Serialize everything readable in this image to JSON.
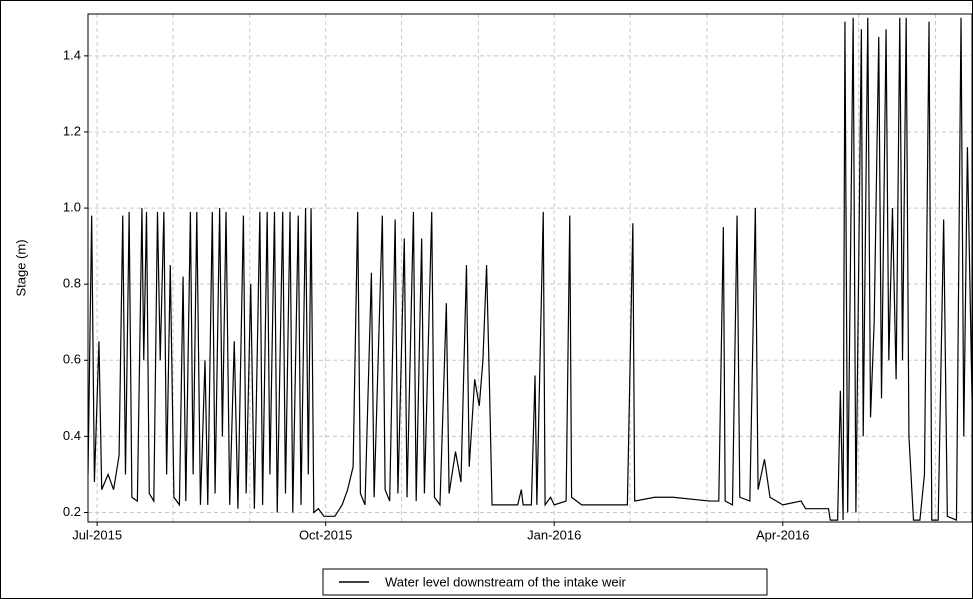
{
  "chart_data": {
    "type": "line",
    "ylabel": "Stage (m)",
    "xlim": [
      2015.49,
      2016.457
    ],
    "xticks": [
      {
        "value": 2015.5,
        "label": "Jul-2015"
      },
      {
        "value": 2015.75,
        "label": "Oct-2015"
      },
      {
        "value": 2016.0,
        "label": "Jan-2016"
      },
      {
        "value": 2016.25,
        "label": "Apr-2016"
      }
    ],
    "xgrid": [
      2015.5,
      2015.583,
      2015.667,
      2015.75,
      2015.833,
      2015.917,
      2016.0,
      2016.083,
      2016.167,
      2016.25,
      2016.333,
      2016.417
    ],
    "ylim": [
      0.175,
      1.51
    ],
    "yticks": [
      {
        "value": 0.2,
        "label": "0.2"
      },
      {
        "value": 0.4,
        "label": "0.4"
      },
      {
        "value": 0.6,
        "label": "0.6"
      },
      {
        "value": 0.8,
        "label": "0.8"
      },
      {
        "value": 1.0,
        "label": "1.0"
      },
      {
        "value": 1.2,
        "label": "1.2"
      },
      {
        "value": 1.4,
        "label": "1.4"
      }
    ],
    "grid": true,
    "legend": "bottom",
    "x": [
      2015.49,
      2015.494,
      2015.497,
      2015.502,
      2015.505,
      2015.512,
      2015.518,
      2015.524,
      2015.528,
      2015.531,
      2015.535,
      2015.538,
      2015.544,
      2015.549,
      2015.551,
      2015.554,
      2015.557,
      2015.562,
      2015.566,
      2015.569,
      2015.573,
      2015.576,
      2015.58,
      2015.584,
      2015.59,
      2015.594,
      2015.597,
      2015.602,
      2015.605,
      2015.609,
      2015.613,
      2015.618,
      2015.621,
      2015.626,
      2015.629,
      2015.634,
      2015.637,
      2015.641,
      2015.645,
      2015.65,
      2015.654,
      2015.66,
      2015.663,
      2015.668,
      2015.672,
      2015.678,
      2015.681,
      2015.686,
      2015.689,
      2015.694,
      2015.697,
      2015.703,
      2015.706,
      2015.711,
      2015.714,
      2015.72,
      2015.723,
      2015.728,
      2015.731,
      2015.734,
      2015.737,
      2015.742,
      2015.748,
      2015.76,
      2015.768,
      2015.774,
      2015.78,
      2015.785,
      2015.788,
      2015.793,
      2015.8,
      2015.803,
      2015.812,
      2015.815,
      2015.82,
      2015.826,
      2015.829,
      2015.836,
      2015.839,
      2015.846,
      2015.849,
      2015.855,
      2015.858,
      2015.866,
      2015.869,
      2015.875,
      2015.882,
      2015.885,
      2015.892,
      2015.898,
      2015.904,
      2015.907,
      2015.913,
      2015.918,
      2015.922,
      2015.926,
      2015.929,
      2015.932,
      2015.96,
      2015.964,
      2015.966,
      2015.975,
      2015.979,
      2015.981,
      2015.988,
      2015.99,
      2015.996,
      2016.0,
      2016.013,
      2016.017,
      2016.019,
      2016.03,
      2016.08,
      2016.086,
      2016.088,
      2016.11,
      2016.13,
      2016.17,
      2016.18,
      2016.185,
      2016.187,
      2016.195,
      2016.2,
      2016.203,
      2016.214,
      2016.22,
      2016.223,
      2016.23,
      2016.236,
      2016.25,
      2016.27,
      2016.275,
      2016.3,
      2016.302,
      2016.31,
      2016.313,
      2016.316,
      2016.318,
      2016.321,
      2016.327,
      2016.33,
      2016.336,
      2016.338,
      2016.343,
      2016.346,
      2016.35,
      2016.355,
      2016.358,
      2016.363,
      2016.366,
      2016.37,
      2016.374,
      2016.378,
      2016.381,
      2016.385,
      2016.388,
      2016.393,
      2016.4,
      2016.405,
      2016.41,
      2016.413,
      2016.42,
      2016.426,
      2016.43,
      2016.44,
      2016.445,
      2016.448,
      2016.452,
      2016.457
    ],
    "series": [
      {
        "name": "Water level downstream of the intake weir",
        "color": "#000000",
        "values": [
          0.3,
          0.98,
          0.28,
          0.65,
          0.26,
          0.3,
          0.26,
          0.35,
          0.98,
          0.3,
          0.99,
          0.24,
          0.23,
          1.0,
          0.6,
          0.99,
          0.25,
          0.23,
          0.99,
          0.6,
          0.99,
          0.3,
          0.85,
          0.24,
          0.22,
          0.82,
          0.23,
          0.99,
          0.3,
          0.99,
          0.22,
          0.6,
          0.22,
          0.99,
          0.25,
          1.0,
          0.4,
          0.99,
          0.22,
          0.65,
          0.21,
          0.98,
          0.25,
          0.8,
          0.21,
          0.99,
          0.22,
          0.99,
          0.3,
          0.99,
          0.2,
          0.99,
          0.25,
          0.99,
          0.2,
          0.98,
          0.22,
          1.0,
          0.3,
          1.0,
          0.2,
          0.21,
          0.19,
          0.19,
          0.22,
          0.26,
          0.32,
          0.99,
          0.25,
          0.22,
          0.83,
          0.24,
          0.98,
          0.26,
          0.23,
          0.97,
          0.25,
          0.92,
          0.24,
          0.99,
          0.23,
          0.92,
          0.25,
          0.99,
          0.24,
          0.22,
          0.75,
          0.25,
          0.36,
          0.28,
          0.85,
          0.32,
          0.55,
          0.48,
          0.6,
          0.85,
          0.55,
          0.22,
          0.22,
          0.26,
          0.22,
          0.22,
          0.56,
          0.22,
          0.99,
          0.22,
          0.24,
          0.22,
          0.23,
          0.98,
          0.24,
          0.22,
          0.22,
          0.96,
          0.23,
          0.24,
          0.24,
          0.23,
          0.23,
          0.95,
          0.23,
          0.22,
          0.98,
          0.24,
          0.23,
          1.0,
          0.26,
          0.34,
          0.24,
          0.22,
          0.23,
          0.21,
          0.21,
          0.18,
          0.18,
          0.52,
          0.18,
          1.49,
          0.2,
          1.5,
          0.2,
          1.47,
          0.4,
          1.5,
          0.45,
          0.7,
          1.45,
          0.5,
          1.47,
          0.6,
          1.0,
          0.55,
          1.5,
          0.6,
          1.5,
          0.4,
          0.18,
          0.18,
          0.3,
          1.49,
          0.18,
          0.18,
          0.97,
          0.19,
          0.18,
          1.5,
          0.4,
          1.16,
          0.5
        ]
      }
    ]
  }
}
